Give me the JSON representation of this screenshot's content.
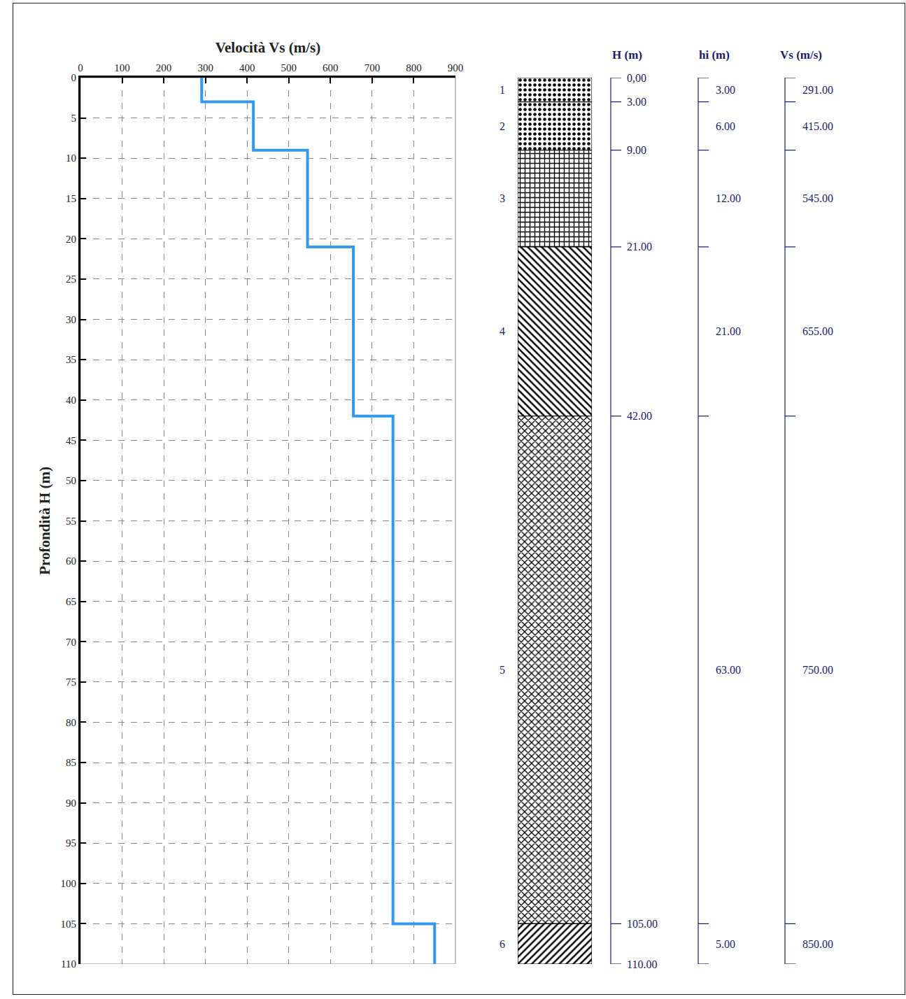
{
  "chart_data": {
    "type": "line",
    "line_style": "step",
    "color": "#3399ee",
    "grid": true,
    "x_title": "Velocità Vs (m/s)",
    "y_title": "Profondità H (m)",
    "xlim": [
      0,
      900
    ],
    "xticks": [
      0,
      100,
      200,
      300,
      400,
      500,
      600,
      700,
      800,
      900
    ],
    "ylim": [
      110,
      0
    ],
    "yticks": [
      0,
      5,
      10,
      15,
      20,
      25,
      30,
      35,
      40,
      45,
      50,
      55,
      60,
      65,
      70,
      75,
      80,
      85,
      90,
      95,
      100,
      105,
      110
    ],
    "layers": {
      "numbers": [
        1,
        2,
        3,
        4,
        5,
        6
      ],
      "depth_top": [
        0,
        3,
        9,
        21,
        42,
        105
      ],
      "depth_bottom": [
        3,
        9,
        21,
        42,
        105,
        110
      ],
      "thickness": [
        3,
        6,
        12,
        21,
        63,
        5
      ],
      "thickness_labels": [
        "3.00",
        "6.00",
        "12.00",
        "21.00",
        "63.00",
        "5.00"
      ],
      "vs": [
        291,
        415,
        545,
        655,
        750,
        850
      ],
      "vs_labels": [
        "291.00",
        "415.00",
        "545.00",
        "655.00",
        "750.00",
        "850.00"
      ]
    },
    "depths": [
      0,
      3,
      9,
      21,
      42,
      105,
      110
    ],
    "depth_labels": [
      "0,00",
      "3.00",
      "9.00",
      "21.00",
      "42.00",
      "105.00",
      "110.00"
    ],
    "column_titles": {
      "depth": "H (m)",
      "thickness": "hi (m)",
      "vs": "Vs (m/s)"
    }
  }
}
